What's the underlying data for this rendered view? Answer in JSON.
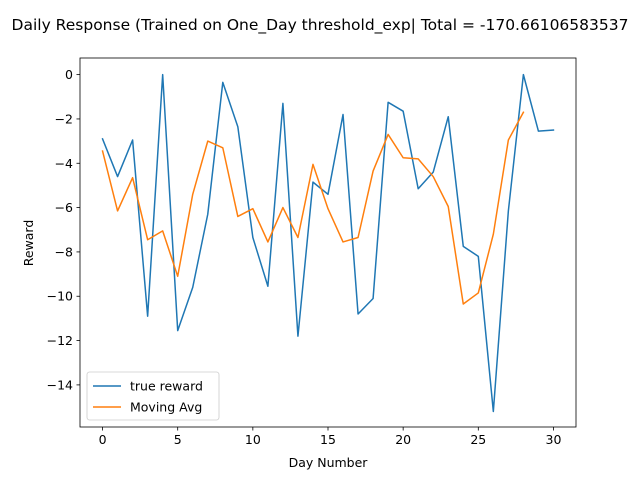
{
  "chart_data": {
    "type": "line",
    "title": "Daily Response (Trained on One_Day threshold_exp| Total = -170.66106583537",
    "xlabel": "Day Number",
    "ylabel": "Reward",
    "xlim": [
      -1.5,
      31.5
    ],
    "ylim": [
      -15.9,
      0.75
    ],
    "xticks": [
      0,
      5,
      10,
      15,
      20,
      25,
      30
    ],
    "yticks": [
      0,
      -2,
      -4,
      -6,
      -8,
      -10,
      -12,
      -14
    ],
    "grid": false,
    "legend_position": "lower-left",
    "series": [
      {
        "name": "true reward",
        "color": "#1f77b4",
        "x": [
          0,
          1,
          2,
          3,
          4,
          5,
          6,
          7,
          8,
          9,
          10,
          11,
          12,
          13,
          14,
          15,
          16,
          17,
          18,
          19,
          20,
          21,
          22,
          23,
          24,
          25,
          26,
          27,
          28,
          29,
          30
        ],
        "values": [
          -2.9,
          -4.6,
          -2.95,
          -10.9,
          0.0,
          -11.55,
          -9.6,
          -6.3,
          -0.35,
          -2.35,
          -7.35,
          -9.55,
          -1.3,
          -11.8,
          -4.85,
          -5.4,
          -1.8,
          -10.8,
          -10.1,
          -1.25,
          -1.65,
          -5.15,
          -4.4,
          -1.9,
          -7.75,
          -8.2,
          -15.2,
          -6.15,
          0.0,
          -2.55,
          -2.5
        ]
      },
      {
        "name": "Moving Avg",
        "color": "#ff7f0e",
        "x": [
          0,
          1,
          2,
          3,
          4,
          5,
          6,
          7,
          8,
          9,
          10,
          11,
          12,
          13,
          14,
          15,
          16,
          17,
          18,
          19,
          20,
          21,
          22,
          23,
          24,
          25,
          26,
          27,
          28
        ],
        "values": [
          -3.45,
          -6.15,
          -4.65,
          -7.45,
          -7.05,
          -9.1,
          -5.4,
          -3.0,
          -3.3,
          -6.4,
          -6.05,
          -7.55,
          -6.0,
          -7.35,
          -4.05,
          -6.05,
          -7.55,
          -7.35,
          -4.35,
          -2.7,
          -3.75,
          -3.8,
          -4.6,
          -5.95,
          -10.35,
          -9.85,
          -7.2,
          -2.95,
          -1.7
        ]
      }
    ]
  }
}
